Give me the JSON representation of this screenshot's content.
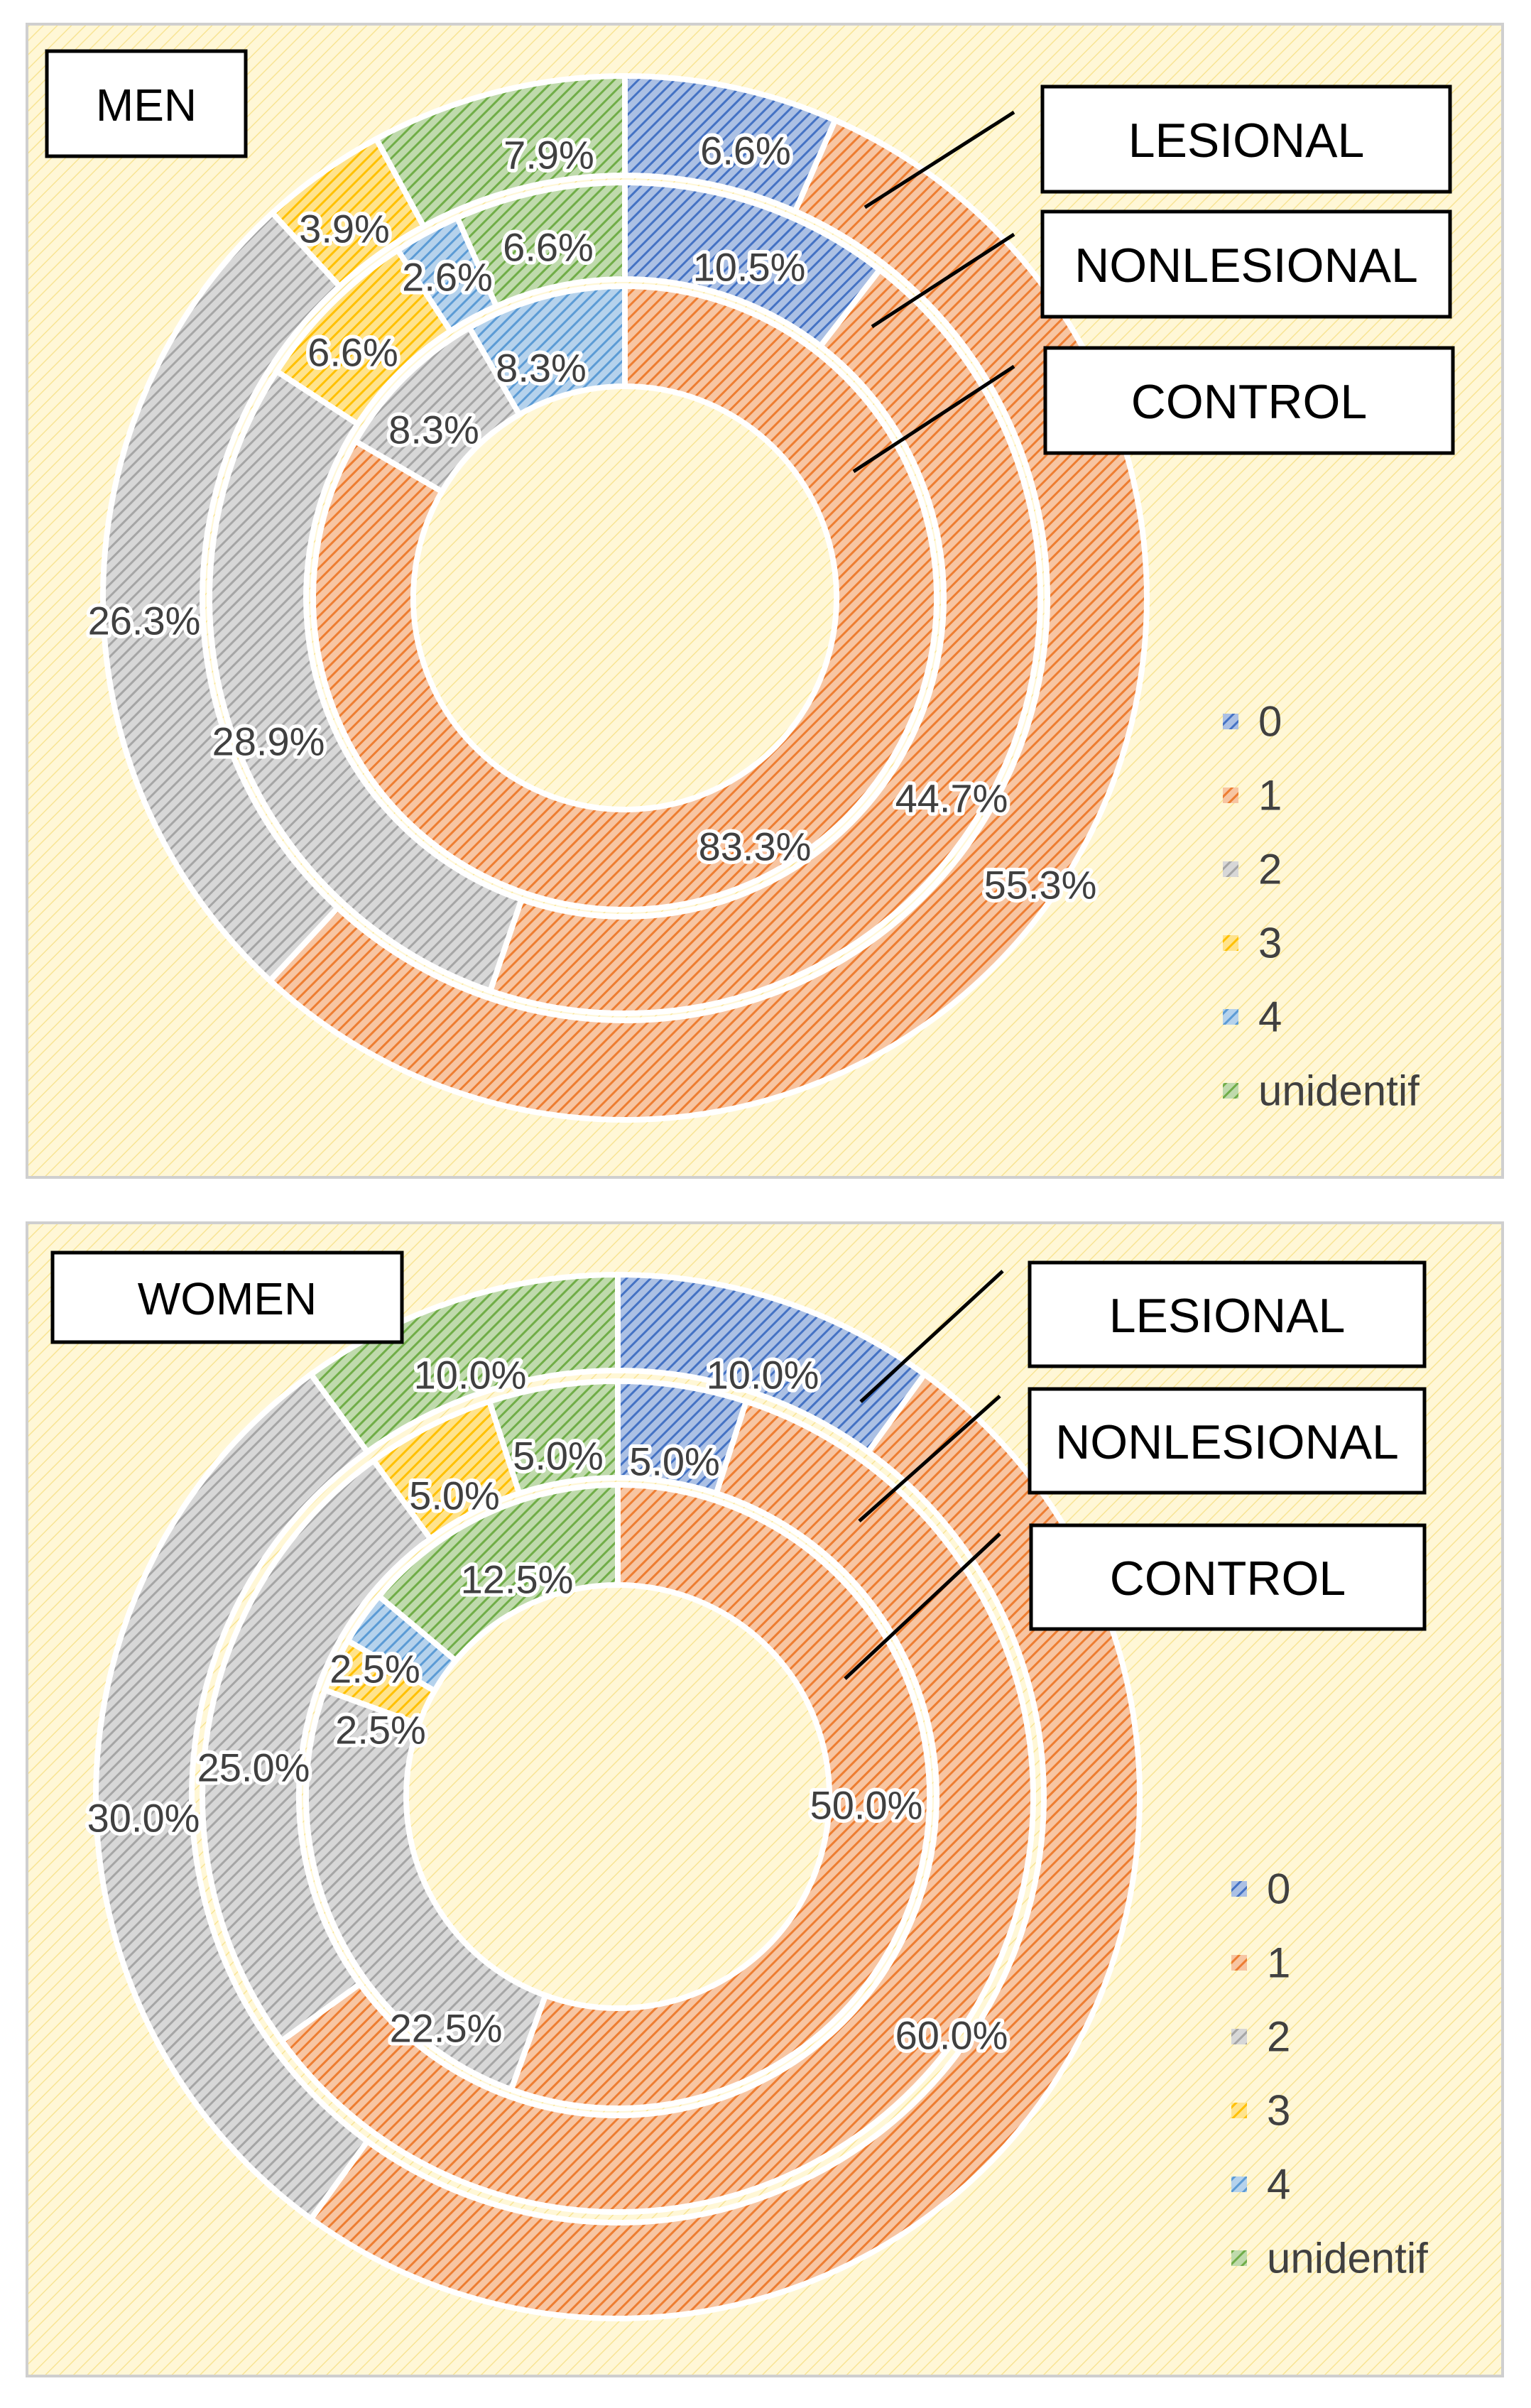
{
  "categories": [
    "0",
    "1",
    "2",
    "3",
    "4",
    "unidentif"
  ],
  "colors": {
    "0": "#4472C4",
    "1": "#ED7D31",
    "2": "#A5A5A5",
    "3": "#FFC000",
    "4": "#5B9BD5",
    "unidentif": "#70AD47",
    "background": "#FFF7D6",
    "hatch": "#F2D45C"
  },
  "chart_data": [
    {
      "type": "pie",
      "variant": "multi-level doughnut",
      "title": "MEN",
      "legend_position": "right",
      "categories": [
        "0",
        "1",
        "2",
        "3",
        "4",
        "unidentif"
      ],
      "series": [
        {
          "name": "LESIONAL",
          "ring": "outer",
          "values": [
            6.6,
            55.3,
            26.3,
            3.9,
            0.0,
            7.9
          ],
          "labels": [
            "6.6%",
            "55.3%",
            "26.3%",
            "3.9%",
            "",
            "7.9%"
          ]
        },
        {
          "name": "NONLESIONAL",
          "ring": "middle",
          "values": [
            10.5,
            44.7,
            28.9,
            6.6,
            2.6,
            6.6
          ],
          "labels": [
            "10.5%",
            "44.7%",
            "28.9%",
            "6.6%",
            "2.6%",
            "6.6%"
          ]
        },
        {
          "name": "CONTROL",
          "ring": "inner",
          "values": [
            0.0,
            83.3,
            8.3,
            0.0,
            8.3,
            0.0
          ],
          "labels": [
            "",
            "83.3%",
            "8.3%",
            "",
            "8.3%",
            ""
          ]
        }
      ]
    },
    {
      "type": "pie",
      "variant": "multi-level doughnut",
      "title": "WOMEN",
      "legend_position": "right",
      "categories": [
        "0",
        "1",
        "2",
        "3",
        "4",
        "unidentif"
      ],
      "series": [
        {
          "name": "LESIONAL",
          "ring": "outer",
          "values": [
            10.0,
            50.0,
            30.0,
            0.0,
            0.0,
            10.0
          ],
          "labels": [
            "10.0%",
            "50.0%",
            "30.0%",
            "",
            "",
            "10.0%"
          ]
        },
        {
          "name": "NONLESIONAL",
          "ring": "middle",
          "values": [
            5.0,
            60.0,
            25.0,
            5.0,
            0.0,
            5.0
          ],
          "labels": [
            "5.0%",
            "60.0%",
            "25.0%",
            "5.0%",
            "",
            "5.0%"
          ]
        },
        {
          "name": "CONTROL",
          "ring": "inner",
          "values": [
            0.0,
            50.0,
            22.5,
            2.5,
            2.5,
            12.5
          ],
          "labels": [
            "",
            "50.0%",
            "22.5%",
            "2.5%",
            "2.5%",
            "12.5%"
          ]
        }
      ]
    }
  ]
}
